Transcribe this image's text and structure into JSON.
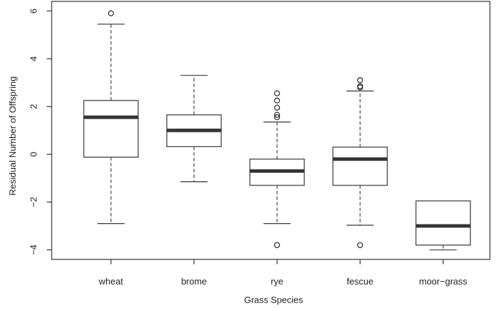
{
  "chart_data": {
    "type": "boxplot",
    "title": "",
    "xlabel": "Grass Species",
    "ylabel": "Residual Number of Offspring",
    "ylim": [
      -4.4,
      6.4
    ],
    "yticks": [
      -4,
      -2,
      0,
      2,
      4,
      6
    ],
    "ytick_labels": [
      "−4",
      "−2",
      "0",
      "2",
      "4",
      "6"
    ],
    "grid": false,
    "categories": [
      "wheat",
      "brome",
      "rye",
      "fescue",
      "moor−grass"
    ],
    "boxes": [
      {
        "name": "wheat",
        "whisker_low": -2.9,
        "q1": -0.12,
        "median": 1.55,
        "q3": 2.25,
        "whisker_high": 5.45,
        "outliers": [
          5.9
        ]
      },
      {
        "name": "brome",
        "whisker_low": -1.15,
        "q1": 0.32,
        "median": 1.0,
        "q3": 1.65,
        "whisker_high": 3.3,
        "outliers": []
      },
      {
        "name": "rye",
        "whisker_low": -2.9,
        "q1": -1.3,
        "median": -0.7,
        "q3": -0.2,
        "whisker_high": 1.35,
        "outliers": [
          1.55,
          1.65,
          1.95,
          2.25,
          2.55,
          -3.8
        ]
      },
      {
        "name": "fescue",
        "whisker_low": -2.97,
        "q1": -1.3,
        "median": -0.2,
        "q3": 0.3,
        "whisker_high": 2.65,
        "outliers": [
          2.8,
          2.85,
          3.1,
          -3.8
        ]
      },
      {
        "name": "moor−grass",
        "whisker_low": -4.0,
        "q1": -3.8,
        "median": -3.0,
        "q3": -1.95,
        "whisker_high": -1.95,
        "outliers": []
      }
    ]
  }
}
